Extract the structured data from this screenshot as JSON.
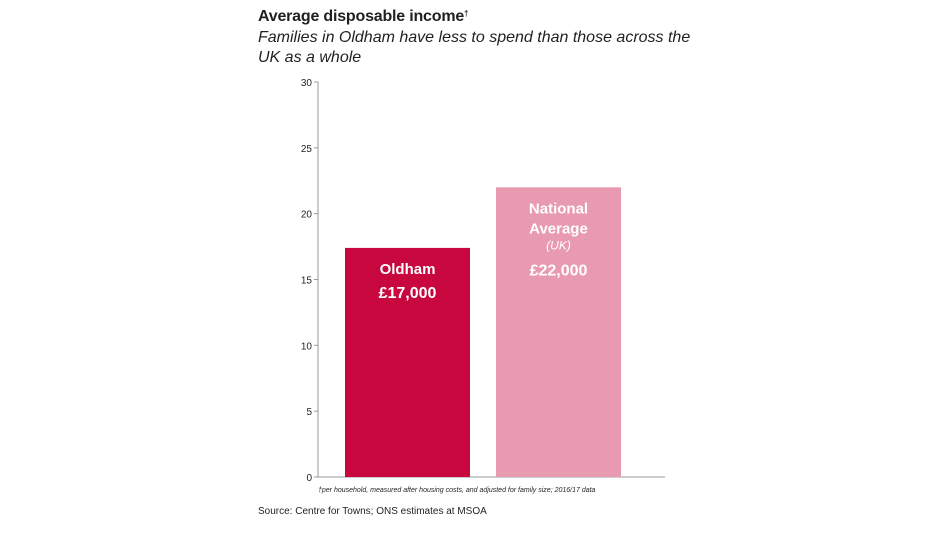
{
  "header": {
    "title": "Average disposable income",
    "title_mark": "†",
    "subtitle": "Families in Oldham have less to spend than those across the UK as a whole"
  },
  "footer": {
    "footnote": "†per household, measured after housing costs, and adjusted for family size; 2016/17 data",
    "source": "Source: Centre for Towns; ONS estimates at MSOA"
  },
  "colors": {
    "oldham": "#c8073e",
    "national": "#e89bb0",
    "axis": "#9a9a9a",
    "tick_text": "#231f20",
    "bar_text": "#ffffff",
    "bar_subtext": "#ffffff"
  },
  "chart_data": {
    "type": "bar",
    "title": "Average disposable income",
    "xlabel": "",
    "ylabel": "",
    "ylim": [
      0,
      30
    ],
    "yticks": [
      0,
      5,
      10,
      15,
      20,
      25,
      30
    ],
    "grid": false,
    "categories": [
      "Oldham",
      "National Average"
    ],
    "values": [
      17.4,
      22
    ],
    "bar_labels": [
      {
        "lines": [
          "Oldham"
        ],
        "sub": "",
        "value": "£17,000"
      },
      {
        "lines": [
          "National",
          "Average"
        ],
        "sub": "(UK)",
        "value": "£22,000"
      }
    ]
  }
}
